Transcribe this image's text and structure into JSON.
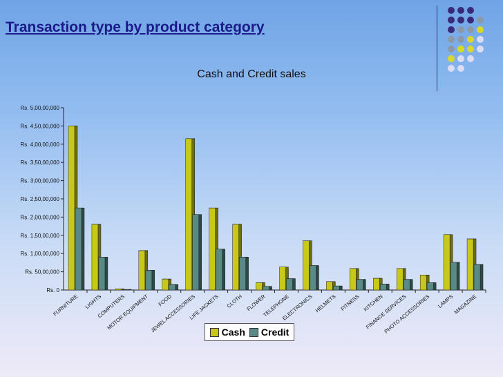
{
  "slide": {
    "title": "Transaction type by product category"
  },
  "colors": {
    "cash": "#c8c81a",
    "cash_side": "#6e6e10",
    "credit": "#5a8a86",
    "credit_side": "#2a4a48",
    "dot_purple": "#3a2a7a",
    "dot_gray": "#8a9aa8",
    "dot_yellow": "#d8d82a",
    "dot_light": "#dcdcf2"
  },
  "decor": {
    "dot_grid": [
      [
        "purple",
        "purple",
        "purple"
      ],
      [
        "purple",
        "purple",
        "purple",
        "gray"
      ],
      [
        "purple",
        "gray",
        "gray",
        "yellow"
      ],
      [
        "gray",
        "gray",
        "yellow",
        "light"
      ],
      [
        "gray",
        "yellow",
        "yellow",
        "light"
      ],
      [
        "yellow",
        "light",
        "light"
      ],
      [
        "light",
        "light"
      ]
    ]
  },
  "chart_data": {
    "type": "bar",
    "title": "Cash and Credit sales",
    "categories": [
      "FURNITURE",
      "LIGHTS",
      "COMPUTERS",
      "MOTOR EQUIPMENT",
      "FOOD",
      "JEWEL ACCESSORIES",
      "LIFE JACKETS",
      "CLOTH",
      "FLOWER",
      "TELEPHONE",
      "ELECTRONICS",
      "HELMETS",
      "FITNESS",
      "KITCHEN",
      "FINANCE SERVICES",
      "PHOTO ACCESSORIES",
      "LAMPS",
      "MAGAZINE"
    ],
    "series": [
      {
        "name": "Cash",
        "values": [
          45000000,
          18000000,
          300000,
          10800000,
          3000000,
          41500000,
          22500000,
          18000000,
          2000000,
          6300000,
          13500000,
          2300000,
          5900000,
          3200000,
          5900000,
          4100000,
          15200000,
          14000000
        ]
      },
      {
        "name": "Credit",
        "values": [
          22500000,
          9000000,
          150000,
          5400000,
          1500000,
          20700000,
          11200000,
          9000000,
          1000000,
          3100000,
          6700000,
          1100000,
          2900000,
          1600000,
          2900000,
          2000000,
          7600000,
          7000000
        ]
      }
    ],
    "ylim": [
      0,
      50000000
    ],
    "yticks": [
      {
        "value": 0,
        "label": "Rs. 0"
      },
      {
        "value": 5000000,
        "label": "Rs. 50,00,000"
      },
      {
        "value": 10000000,
        "label": "Rs. 1,00,00,000"
      },
      {
        "value": 15000000,
        "label": "Rs. 1,50,00,000"
      },
      {
        "value": 20000000,
        "label": "Rs. 2,00,00,000"
      },
      {
        "value": 25000000,
        "label": "Rs. 2,50,00,000"
      },
      {
        "value": 30000000,
        "label": "Rs. 3,00,00,000"
      },
      {
        "value": 35000000,
        "label": "Rs. 3,50,00,000"
      },
      {
        "value": 40000000,
        "label": "Rs. 4,00,00,000"
      },
      {
        "value": 45000000,
        "label": "Rs. 4,50,00,000"
      },
      {
        "value": 50000000,
        "label": "Rs. 5,00,00,000"
      }
    ],
    "grid": false,
    "legend": {
      "position": "bottom",
      "labels": [
        "Cash",
        "Credit"
      ]
    }
  }
}
